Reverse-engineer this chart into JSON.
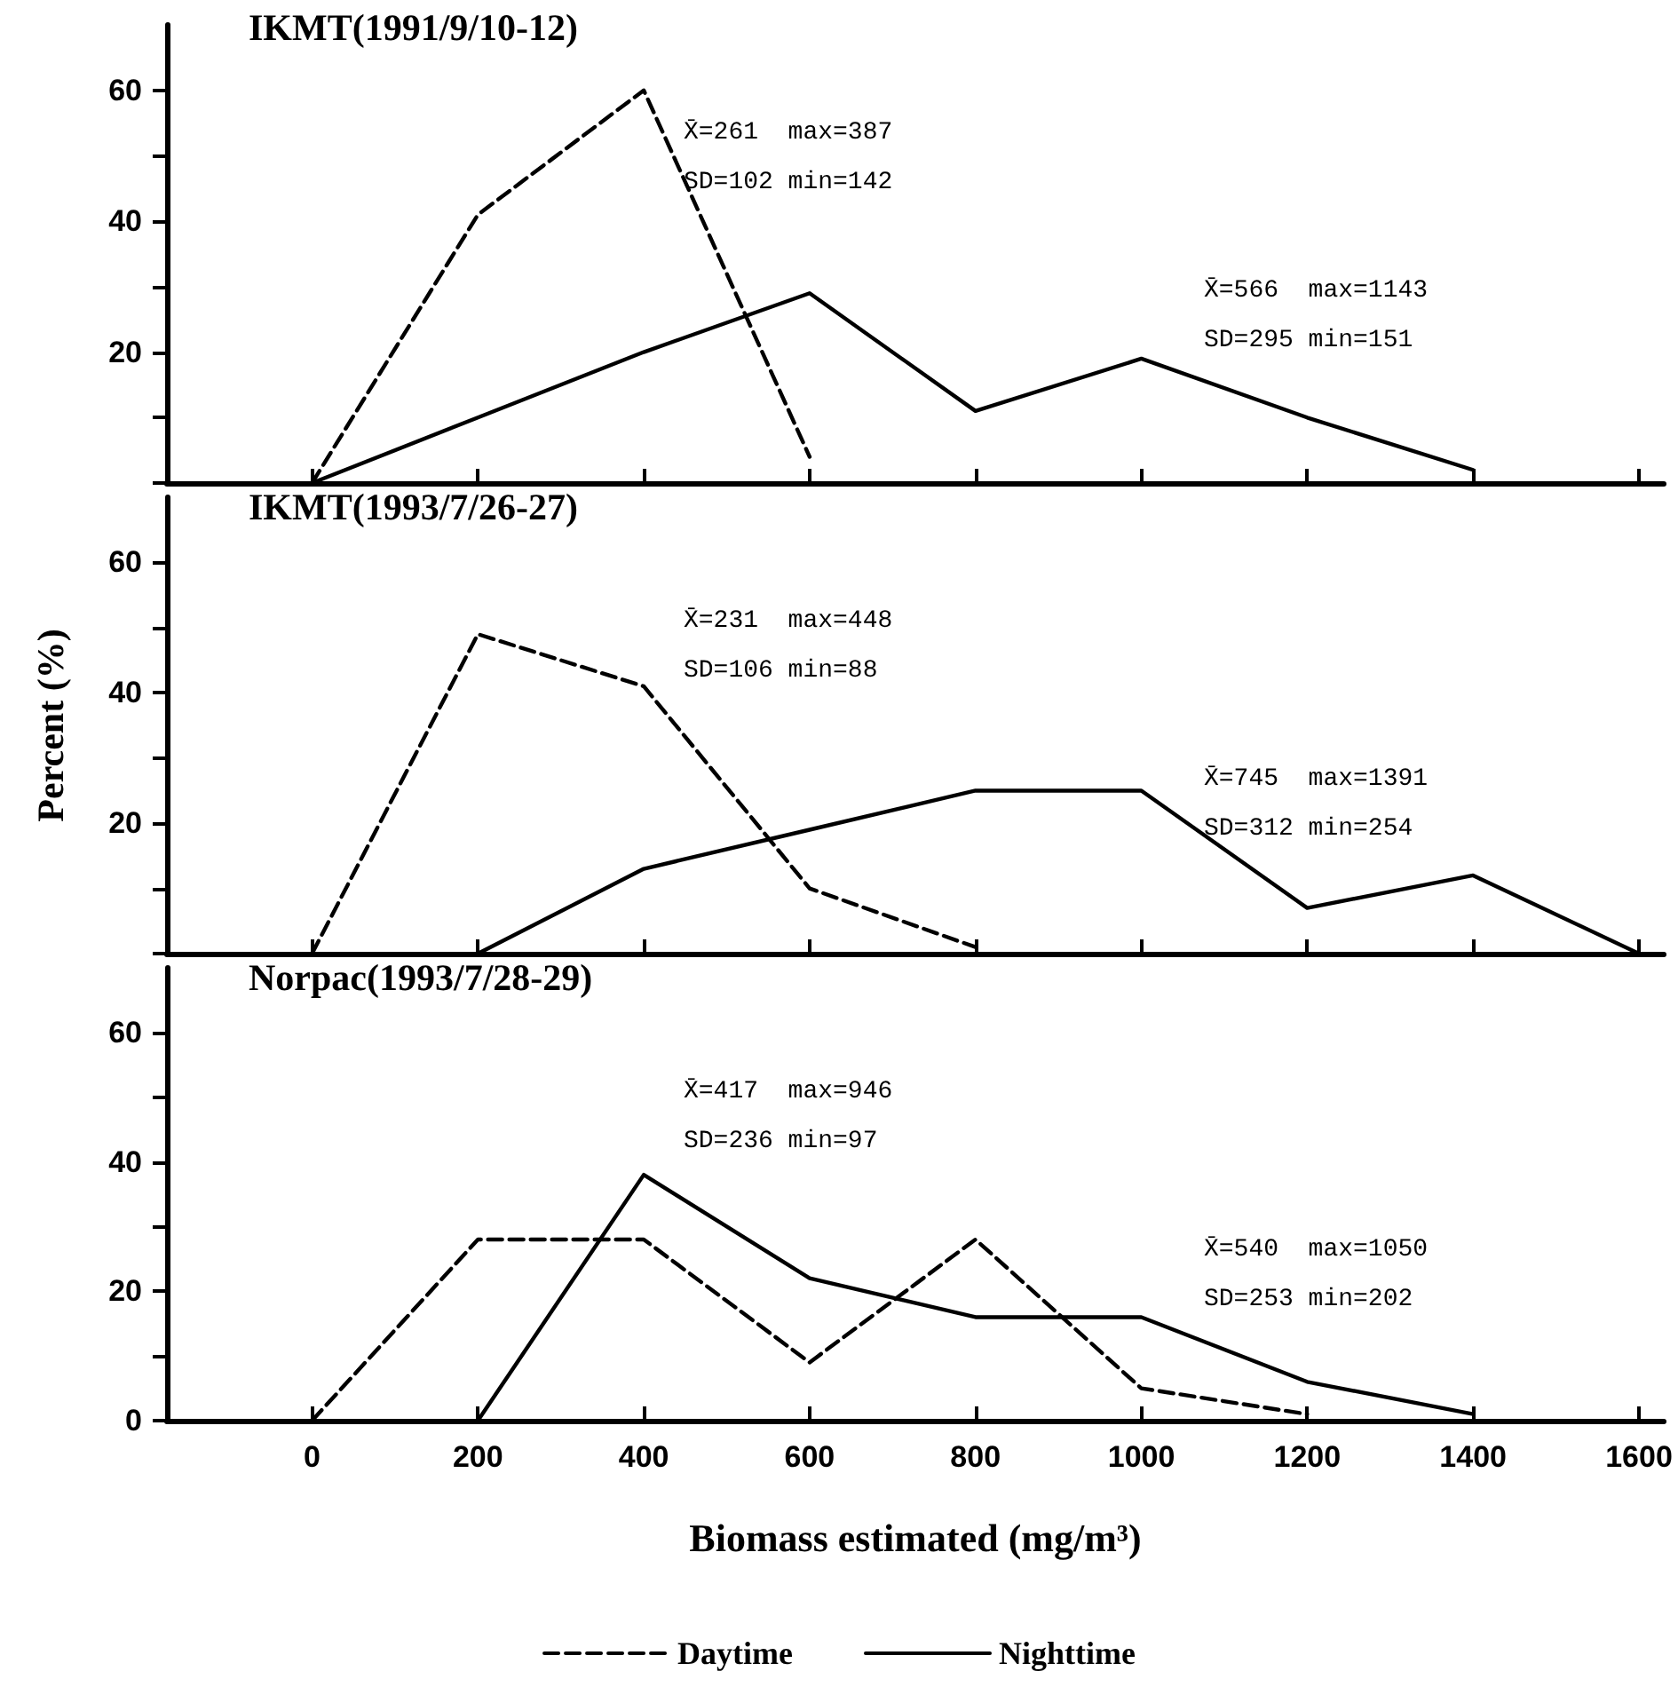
{
  "chart_data": [
    {
      "type": "line",
      "title": "IKMT(1991/9/10-12)",
      "marker": "none",
      "tick_labels": "y",
      "xlim": [
        -175,
        1630
      ],
      "xticks": [
        {
          "value": 0,
          "label": null
        },
        {
          "value": 200,
          "label": null
        },
        {
          "value": 400,
          "label": null
        },
        {
          "value": 600,
          "label": null
        },
        {
          "value": 800,
          "label": null
        },
        {
          "value": 1000,
          "label": null
        },
        {
          "value": 1200,
          "label": null
        },
        {
          "value": 1400,
          "label": null
        },
        {
          "value": 1600,
          "label": null
        }
      ],
      "ylim": [
        0,
        70
      ],
      "yticks": [
        {
          "value": 0,
          "label": null
        },
        {
          "value": 10,
          "label": null
        },
        20,
        {
          "value": 30,
          "label": null
        },
        40,
        {
          "value": 50,
          "label": null
        },
        60
      ],
      "series": [
        {
          "color": "#000000",
          "line_style": "dashed",
          "x": [
            0,
            200,
            400,
            600
          ],
          "values": [
            0,
            41,
            60,
            4
          ]
        },
        {
          "color": "#000000",
          "line_style": "solid",
          "x": [
            0,
            200,
            400,
            600,
            800,
            1000,
            1200,
            1400
          ],
          "values": [
            0,
            10,
            20,
            29,
            11,
            19,
            10,
            2
          ]
        }
      ],
      "annotations": [
        "X̄=261  max=387",
        "SD=102 min=142",
        "X̄=566  max=1143",
        "SD=295 min=151"
      ]
    },
    {
      "type": "line",
      "title": "IKMT(1993/7/26-27)",
      "ylabel": "Percent (%)",
      "marker": "none",
      "tick_labels": "y",
      "xlim": [
        -175,
        1630
      ],
      "xticks": [
        {
          "value": 0,
          "label": null
        },
        {
          "value": 200,
          "label": null
        },
        {
          "value": 400,
          "label": null
        },
        {
          "value": 600,
          "label": null
        },
        {
          "value": 800,
          "label": null
        },
        {
          "value": 1000,
          "label": null
        },
        {
          "value": 1200,
          "label": null
        },
        {
          "value": 1400,
          "label": null
        },
        {
          "value": 1600,
          "label": null
        }
      ],
      "ylim": [
        0,
        70
      ],
      "yticks": [
        {
          "value": 0,
          "label": null
        },
        {
          "value": 10,
          "label": null
        },
        20,
        {
          "value": 30,
          "label": null
        },
        40,
        {
          "value": 50,
          "label": null
        },
        60
      ],
      "series": [
        {
          "color": "#000000",
          "line_style": "dashed",
          "x": [
            0,
            200,
            400,
            600,
            800
          ],
          "values": [
            0,
            49,
            41,
            10,
            1
          ]
        },
        {
          "color": "#000000",
          "line_style": "solid",
          "x": [
            200,
            400,
            600,
            800,
            1000,
            1200,
            1400,
            1600
          ],
          "values": [
            0,
            13,
            19,
            25,
            25,
            7,
            12,
            0
          ]
        }
      ],
      "annotations": [
        "X̄=231  max=448",
        "SD=106 min=88",
        "X̄=745  max=1391",
        "SD=312 min=254"
      ]
    },
    {
      "type": "line",
      "title": "Norpac(1993/7/28-29)",
      "xlabel": "Biomass estimated (mg/m³)",
      "marker": "none",
      "legend": "bottom",
      "xlim": [
        -175,
        1630
      ],
      "xticks": [
        0,
        200,
        400,
        600,
        800,
        1000,
        1200,
        1400,
        1600
      ],
      "ylim": [
        0,
        70
      ],
      "yticks": [
        0,
        {
          "value": 10,
          "label": null
        },
        20,
        {
          "value": 30,
          "label": null
        },
        40,
        {
          "value": 50,
          "label": null
        },
        60
      ],
      "series": [
        {
          "name": "Daytime",
          "color": "#000000",
          "line_style": "dashed",
          "x": [
            0,
            200,
            400,
            600,
            800,
            1000,
            1200
          ],
          "values": [
            0,
            28,
            28,
            9,
            28,
            5,
            1
          ]
        },
        {
          "name": "Nighttime",
          "color": "#000000",
          "line_style": "solid",
          "x": [
            200,
            400,
            600,
            800,
            1000,
            1200,
            1400
          ],
          "values": [
            0,
            38,
            22,
            16,
            16,
            6,
            1
          ]
        }
      ],
      "annotations": [
        "X̄=417  max=946",
        "SD=236 min=97",
        "X̄=540  max=1050",
        "SD=253 min=202"
      ]
    }
  ]
}
